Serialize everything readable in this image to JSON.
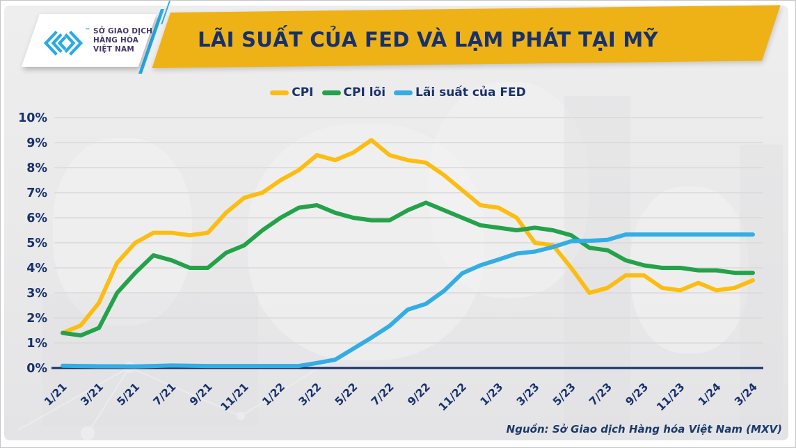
{
  "header": {
    "title": "LÃI SUẤT CỦA FED VÀ LẠM PHÁT TẠI MỸ"
  },
  "logo": {
    "line1": "SỞ GIAO DỊCH",
    "line2": "HÀNG HÓA",
    "line3": "VIỆT NAM",
    "tm": "™"
  },
  "source_note": "Nguồn: Sở Giao dịch Hàng hóa Việt Nam (MXV)",
  "colors": {
    "banner_gold": "#efb216",
    "navy_text": "#17316b",
    "axis_line": "#17306b",
    "gridline": "#d9d9d9",
    "logo_blue": "#29abe2",
    "panel_gray": "#e9e9ea"
  },
  "chart_data": {
    "type": "line",
    "title": "LÃI SUẤT CỦA FED VÀ LẠM PHÁT TẠI MỸ",
    "xlabel": "",
    "ylabel": "",
    "ylim": [
      0,
      10
    ],
    "grid": "horizontal",
    "legend_position": "top-center",
    "x": [
      "1/21",
      "2/21",
      "3/21",
      "4/21",
      "5/21",
      "6/21",
      "7/21",
      "8/21",
      "9/21",
      "10/21",
      "11/21",
      "12/21",
      "1/22",
      "2/22",
      "3/22",
      "4/22",
      "5/22",
      "6/22",
      "7/22",
      "8/22",
      "9/22",
      "10/22",
      "11/22",
      "12/22",
      "1/23",
      "2/23",
      "3/23",
      "4/23",
      "5/23",
      "6/23",
      "7/23",
      "8/23",
      "9/23",
      "10/23",
      "11/23",
      "12/23",
      "1/24",
      "2/24",
      "3/24"
    ],
    "x_tick_labels": [
      "1/21",
      "3/21",
      "5/21",
      "7/21",
      "9/21",
      "11/21",
      "1/22",
      "3/22",
      "5/22",
      "7/22",
      "9/22",
      "11/22",
      "1/23",
      "3/23",
      "5/23",
      "7/23",
      "9/23",
      "11/23",
      "1/24",
      "3/24"
    ],
    "y_tick_labels": [
      "0%",
      "1%",
      "2%",
      "3%",
      "4%",
      "5%",
      "6%",
      "7%",
      "8%",
      "9%",
      "10%"
    ],
    "series": [
      {
        "name": "CPI",
        "color": "#fcbd13",
        "values": [
          1.4,
          1.7,
          2.6,
          4.2,
          5.0,
          5.4,
          5.4,
          5.3,
          5.4,
          6.2,
          6.8,
          7.0,
          7.5,
          7.9,
          8.5,
          8.3,
          8.6,
          9.1,
          8.5,
          8.3,
          8.2,
          7.7,
          7.1,
          6.5,
          6.4,
          6.0,
          5.0,
          4.9,
          4.0,
          3.0,
          3.2,
          3.7,
          3.7,
          3.2,
          3.1,
          3.4,
          3.1,
          3.2,
          3.5
        ]
      },
      {
        "name": "CPI lõi",
        "color": "#23a24a",
        "values": [
          1.4,
          1.3,
          1.6,
          3.0,
          3.8,
          4.5,
          4.3,
          4.0,
          4.0,
          4.6,
          4.9,
          5.5,
          6.0,
          6.4,
          6.5,
          6.2,
          6.0,
          5.9,
          5.9,
          6.3,
          6.6,
          6.3,
          6.0,
          5.7,
          5.6,
          5.5,
          5.6,
          5.5,
          5.3,
          4.8,
          4.7,
          4.3,
          4.1,
          4.0,
          4.0,
          3.9,
          3.9,
          3.8,
          3.8
        ]
      },
      {
        "name": "Lãi suất của FED",
        "color": "#33ade4",
        "values": [
          0.09,
          0.08,
          0.07,
          0.07,
          0.06,
          0.08,
          0.1,
          0.09,
          0.08,
          0.08,
          0.08,
          0.08,
          0.08,
          0.08,
          0.2,
          0.33,
          0.77,
          1.21,
          1.68,
          2.33,
          2.56,
          3.08,
          3.78,
          4.1,
          4.33,
          4.57,
          4.65,
          4.83,
          5.06,
          5.08,
          5.12,
          5.33,
          5.33,
          5.33,
          5.33,
          5.33,
          5.33,
          5.33,
          5.33
        ]
      }
    ]
  }
}
